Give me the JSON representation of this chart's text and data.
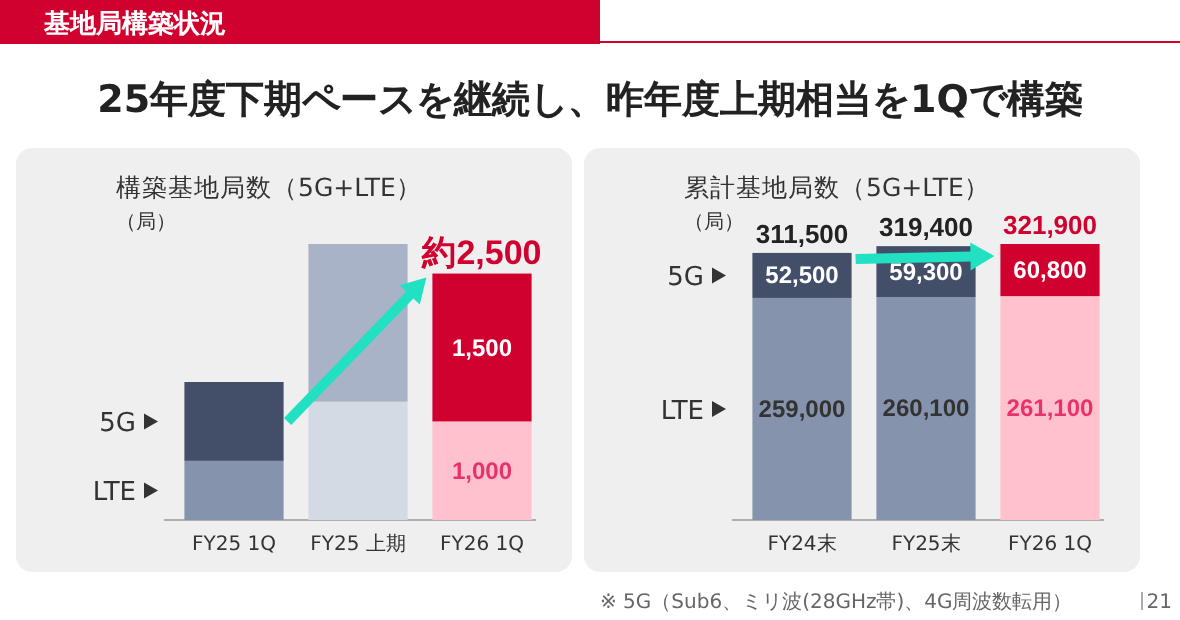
{
  "chart_data": [
    {
      "type": "other",
      "title": "基地局構築状況",
      "subtitle": "25年度下期ペースを継続し、昨年度上期相当を1Qで構築",
      "annotations": [
        "※ 5G（Sub6、ミリ波(28GHz帯)、4G周波数転用）",
        "21"
      ]
    },
    {
      "type": "bar",
      "stacked": true,
      "title": "構築基地局数（5G+LTE）",
      "ylabel": "（局）",
      "categories": [
        "FY25 1Q",
        "FY25 上期",
        "FY26 1Q"
      ],
      "legend": "left",
      "totals": [
        null,
        null,
        "約2,500"
      ],
      "series": [
        {
          "name": "LTE",
          "colors": [
            "#8593ad",
            "#d4dae4",
            "#ffc1cd"
          ],
          "values": [
            600,
            1200,
            1000
          ],
          "value_labels": [
            null,
            null,
            "1,000"
          ]
        },
        {
          "name": "5G",
          "colors": [
            "#434f69",
            "#a9b3c7",
            "#d0002f"
          ],
          "values": [
            800,
            1600,
            1500
          ],
          "value_labels": [
            null,
            null,
            "1,500"
          ]
        }
      ]
    },
    {
      "type": "bar",
      "stacked": true,
      "title": "累計基地局数（5G+LTE）",
      "ylabel": "（局）",
      "categories": [
        "FY24末",
        "FY25末",
        "FY26 1Q"
      ],
      "legend": "left",
      "totals": [
        "311,500",
        "319,400",
        "321,900"
      ],
      "series": [
        {
          "name": "LTE",
          "colors": [
            "#8593ad",
            "#8593ad",
            "#ffc1cd"
          ],
          "values": [
            259000,
            260100,
            261100
          ],
          "value_labels": [
            "259,000",
            "260,100",
            "261,100"
          ]
        },
        {
          "name": "5G",
          "colors": [
            "#434f69",
            "#434f69",
            "#d0002f"
          ],
          "values": [
            52500,
            59300,
            60800
          ],
          "value_labels": [
            "52,500",
            "59,300",
            "60,800"
          ]
        }
      ]
    }
  ]
}
